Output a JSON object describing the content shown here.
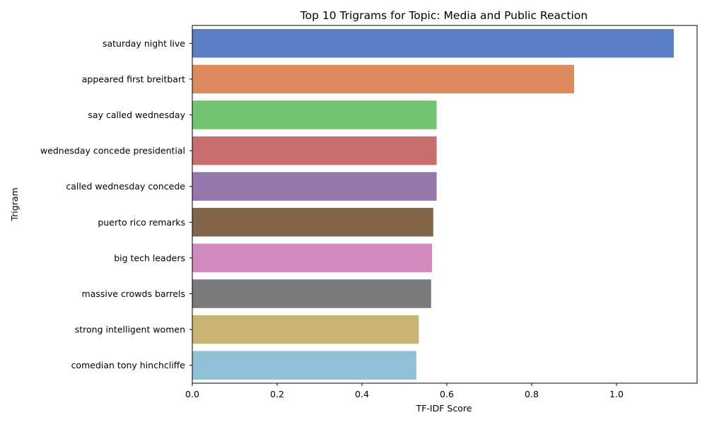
{
  "chart_data": {
    "type": "bar",
    "orientation": "horizontal",
    "title": "Top 10 Trigrams for Topic: Media and Public Reaction",
    "xlabel": "TF-IDF Score",
    "ylabel": "Trigram",
    "xlim": [
      0,
      1.19
    ],
    "xticks": [
      0.0,
      0.2,
      0.4,
      0.6,
      0.8,
      1.0
    ],
    "xtick_labels": [
      "0.0",
      "0.2",
      "0.4",
      "0.6",
      "0.8",
      "1.0"
    ],
    "grid": false,
    "legend": "none",
    "categories": [
      "saturday night live",
      "appeared first breitbart",
      "say called wednesday",
      "wednesday concede presidential",
      "called wednesday concede",
      "puerto rico remarks",
      "big tech leaders",
      "massive crowds barrels",
      "strong intelligent women",
      "comedian tony hinchcliffe"
    ],
    "values": [
      1.135,
      0.9,
      0.576,
      0.576,
      0.576,
      0.568,
      0.565,
      0.563,
      0.534,
      0.528
    ],
    "colors": [
      "#5a7fc4",
      "#dc8a5e",
      "#74c373",
      "#c86e6e",
      "#9477ad",
      "#826448",
      "#d289be",
      "#7b7b7b",
      "#c8b574",
      "#8fc0d6"
    ]
  }
}
